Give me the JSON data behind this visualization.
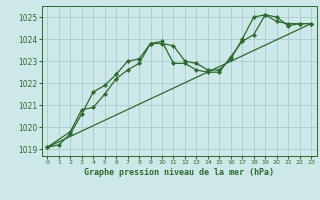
{
  "title": "Graphe pression niveau de la mer (hPa)",
  "bg_color": "#cce8e8",
  "grid_color": "#aacccc",
  "line_color": "#2d6a2d",
  "marker_color": "#2d6a2d",
  "xlim": [
    -0.5,
    23.5
  ],
  "ylim": [
    1018.7,
    1025.5
  ],
  "xticks": [
    0,
    1,
    2,
    3,
    4,
    5,
    6,
    7,
    8,
    9,
    10,
    11,
    12,
    13,
    14,
    15,
    16,
    17,
    18,
    19,
    20,
    21,
    22,
    23
  ],
  "yticks": [
    1019,
    1020,
    1021,
    1022,
    1023,
    1024,
    1025
  ],
  "series1_x": [
    0,
    1,
    2,
    3,
    4,
    5,
    6,
    7,
    8,
    9,
    10,
    11,
    12,
    13,
    14,
    15,
    16,
    17,
    18,
    19,
    20,
    21,
    22,
    23
  ],
  "series1_y": [
    1019.1,
    1019.2,
    1019.7,
    1020.6,
    1021.6,
    1021.9,
    1022.4,
    1023.0,
    1023.1,
    1023.8,
    1023.8,
    1023.7,
    1023.0,
    1022.9,
    1022.6,
    1022.6,
    1023.1,
    1024.0,
    1025.0,
    1025.1,
    1024.8,
    1024.7,
    1024.7,
    1024.7
  ],
  "series2_x": [
    0,
    2,
    3,
    4,
    5,
    6,
    7,
    8,
    9,
    10,
    11,
    12,
    13,
    14,
    15,
    16,
    17,
    18,
    19,
    20,
    21,
    22,
    23
  ],
  "series2_y": [
    1019.1,
    1019.8,
    1020.8,
    1020.9,
    1021.5,
    1022.2,
    1022.6,
    1022.9,
    1023.8,
    1023.9,
    1022.9,
    1022.9,
    1022.6,
    1022.5,
    1022.5,
    1023.2,
    1023.9,
    1024.2,
    1025.1,
    1025.0,
    1024.6,
    1024.7,
    1024.7
  ],
  "series3_x": [
    0,
    23
  ],
  "series3_y": [
    1019.1,
    1024.7
  ]
}
